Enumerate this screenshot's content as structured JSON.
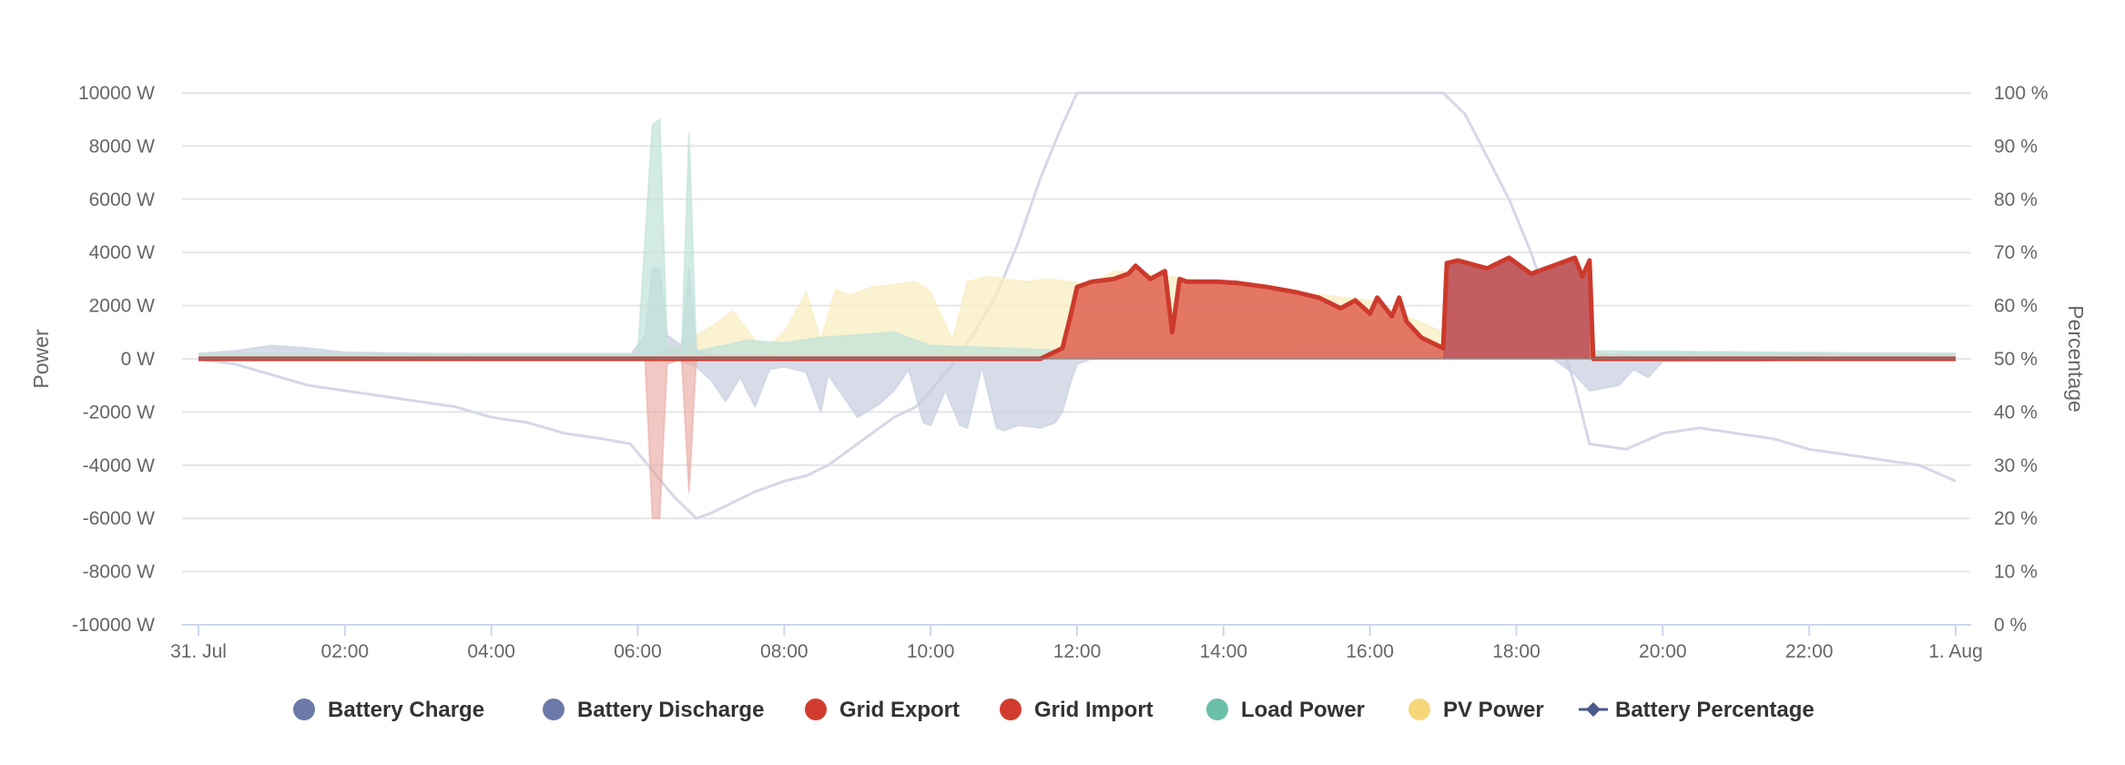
{
  "chart_data": {
    "type": "area",
    "title": "",
    "x_range": [
      "31. Jul 00:00",
      "1. Aug 00:00"
    ],
    "x_ticks": [
      "31. Jul",
      "02:00",
      "04:00",
      "06:00",
      "08:00",
      "10:00",
      "12:00",
      "14:00",
      "16:00",
      "18:00",
      "20:00",
      "22:00",
      "1. Aug"
    ],
    "y_left": {
      "label": "Power",
      "unit": "W",
      "range": [
        -10000,
        10000
      ],
      "ticks": [
        "10000 W",
        "8000 W",
        "6000 W",
        "4000 W",
        "2000 W",
        "0 W",
        "-2000 W",
        "-4000 W",
        "-6000 W",
        "-8000 W",
        "-10000 W"
      ]
    },
    "y_right": {
      "label": "Percentage",
      "unit": "%",
      "range": [
        0,
        100
      ],
      "ticks": [
        "100 %",
        "90 %",
        "80 %",
        "70 %",
        "60 %",
        "50 %",
        "40 %",
        "30 %",
        "20 %",
        "10 %",
        "0 %"
      ]
    },
    "grid": true,
    "legend_position": "bottom-center",
    "legend": [
      {
        "name": "Battery Charge",
        "color": "#6b7aa8",
        "marker": "circle"
      },
      {
        "name": "Battery Discharge",
        "color": "#6b7aa8",
        "marker": "circle"
      },
      {
        "name": "Grid Export",
        "color": "#d23c2e",
        "marker": "circle"
      },
      {
        "name": "Grid Import",
        "color": "#d23c2e",
        "marker": "circle"
      },
      {
        "name": "Load Power",
        "color": "#6bbfa8",
        "marker": "circle"
      },
      {
        "name": "PV Power",
        "color": "#f5d77a",
        "marker": "circle"
      },
      {
        "name": "Battery Percentage",
        "color": "#4a5a8c",
        "marker": "line-diamond"
      }
    ],
    "series": [
      {
        "name": "Battery Charge",
        "axis": "left",
        "color": "#c7cde0",
        "x": [
          0,
          0.5,
          1,
          1.5,
          2,
          3,
          4,
          5,
          5.9,
          6.1,
          6.2,
          6.3,
          6.4,
          6.6,
          6.7,
          6.8,
          7,
          8,
          10,
          12,
          14,
          16,
          17,
          18,
          19,
          19.5,
          20,
          22,
          24
        ],
        "y": [
          200,
          300,
          500,
          400,
          250,
          200,
          150,
          150,
          150,
          900,
          3400,
          3400,
          900,
          500,
          3400,
          300,
          150,
          100,
          100,
          100,
          100,
          100,
          100,
          100,
          150,
          200,
          250,
          200,
          200
        ]
      },
      {
        "name": "Battery Discharge",
        "axis": "left",
        "color": "#c7cde0",
        "x": [
          0,
          6.5,
          6.8,
          7.0,
          7.2,
          7.4,
          7.6,
          7.8,
          8.0,
          8.3,
          8.5,
          8.6,
          8.8,
          9.0,
          9.3,
          9.5,
          9.7,
          9.9,
          10.0,
          10.2,
          10.4,
          10.5,
          10.7,
          10.9,
          11.0,
          11.2,
          11.5,
          11.7,
          11.8,
          11.9,
          12.0,
          12.2,
          18.5,
          18.8,
          19.0,
          19.2,
          19.4,
          19.6,
          19.8,
          20.0,
          24
        ],
        "y": [
          0,
          0,
          -300,
          -800,
          -1600,
          -700,
          -1800,
          -400,
          -300,
          -500,
          -2000,
          -600,
          -1400,
          -2200,
          -1700,
          -1200,
          -400,
          -2400,
          -2500,
          -1200,
          -2500,
          -2600,
          -300,
          -2600,
          -2700,
          -2500,
          -2600,
          -2400,
          -2000,
          -1000,
          -200,
          0,
          0,
          -600,
          -1200,
          -1100,
          -1000,
          -400,
          -700,
          -100,
          0
        ]
      },
      {
        "name": "Grid Export",
        "axis": "left",
        "color": "#d23c2e",
        "x": [
          0,
          11.5,
          11.8,
          11.9,
          12.0,
          12.2,
          12.5,
          12.7,
          12.8,
          13.0,
          13.2,
          13.3,
          13.4,
          13.5,
          13.9,
          14.2,
          14.6,
          15.0,
          15.3,
          15.6,
          15.8,
          16.0,
          16.1,
          16.3,
          16.4,
          16.5,
          16.7,
          17.0,
          17.05,
          17.2,
          17.6,
          17.9,
          18.0,
          18.2,
          18.5,
          18.8,
          18.9,
          19.0,
          19.05,
          24
        ],
        "y": [
          0,
          0,
          400,
          1500,
          2700,
          2900,
          3000,
          3200,
          3500,
          3000,
          3300,
          1000,
          3000,
          2900,
          2900,
          2850,
          2700,
          2500,
          2300,
          1900,
          2200,
          1700,
          2300,
          1600,
          2300,
          1400,
          800,
          400,
          3600,
          3700,
          3400,
          3800,
          3600,
          3200,
          3500,
          3800,
          3100,
          3700,
          0,
          0
        ]
      },
      {
        "name": "Grid Import",
        "axis": "left",
        "color": "#e9a39c",
        "x": [
          0,
          6.1,
          6.2,
          6.3,
          6.4,
          6.6,
          6.7,
          6.8,
          24
        ],
        "y": [
          0,
          0,
          -6000,
          -6000,
          -200,
          0,
          -5000,
          0,
          0
        ]
      },
      {
        "name": "Load Power",
        "axis": "left",
        "color": "#bfe3d8",
        "x": [
          0,
          6.0,
          6.2,
          6.3,
          6.4,
          6.6,
          6.7,
          6.8,
          7.0,
          7.5,
          8.0,
          8.5,
          9.0,
          9.5,
          10.0,
          12.0,
          14.0,
          16.0,
          17.0,
          18.0,
          19.0,
          24
        ],
        "y": [
          200,
          200,
          8800,
          9000,
          500,
          300,
          8500,
          300,
          400,
          700,
          600,
          800,
          900,
          1000,
          500,
          300,
          300,
          400,
          500,
          500,
          300,
          200
        ]
      },
      {
        "name": "PV Power",
        "axis": "left",
        "color": "#f8edc0",
        "x": [
          0,
          6.0,
          6.5,
          7.0,
          7.3,
          7.6,
          7.8,
          8.0,
          8.3,
          8.5,
          8.7,
          8.9,
          9.2,
          9.5,
          9.8,
          10.0,
          10.3,
          10.5,
          10.8,
          11.0,
          11.3,
          11.6,
          11.9,
          12.2,
          12.5,
          13.0,
          14.0,
          15.0,
          16.0,
          16.5,
          17.0,
          18.0,
          19.0,
          19.5,
          20.0,
          24
        ],
        "y": [
          0,
          0,
          400,
          1200,
          1800,
          700,
          500,
          1000,
          2500,
          700,
          2600,
          2400,
          2700,
          2800,
          2900,
          2500,
          700,
          2900,
          3100,
          3000,
          2900,
          3000,
          2900,
          2800,
          3300,
          3200,
          2800,
          2500,
          2200,
          1600,
          1000,
          700,
          300,
          100,
          0,
          0
        ]
      },
      {
        "name": "Battery Percentage",
        "axis": "right",
        "color": "#d5d8e6",
        "x": [
          0,
          0.5,
          1.0,
          1.5,
          2.0,
          2.5,
          3.0,
          3.5,
          4.0,
          4.5,
          5.0,
          5.5,
          5.9,
          6.2,
          6.5,
          6.8,
          7.0,
          7.3,
          7.6,
          8.0,
          8.3,
          8.6,
          8.9,
          9.2,
          9.5,
          9.8,
          10.0,
          10.3,
          10.6,
          10.9,
          11.2,
          11.5,
          11.8,
          12.0,
          16.0,
          17.0,
          17.3,
          17.6,
          17.9,
          18.2,
          18.5,
          18.8,
          19.0,
          19.5,
          20.0,
          20.5,
          21.0,
          21.5,
          22.0,
          22.5,
          23.0,
          23.5,
          24.0
        ],
        "y": [
          50,
          49,
          47,
          45,
          44,
          43,
          42,
          41,
          39,
          38,
          36,
          35,
          34,
          29,
          24,
          20,
          21,
          23,
          25,
          27,
          28,
          30,
          33,
          36,
          39,
          41,
          44,
          49,
          55,
          62,
          72,
          84,
          94,
          100,
          100,
          100,
          96,
          88,
          80,
          70,
          58,
          45,
          34,
          33,
          36,
          37,
          36,
          35,
          33,
          32,
          31,
          30,
          27
        ]
      }
    ]
  }
}
